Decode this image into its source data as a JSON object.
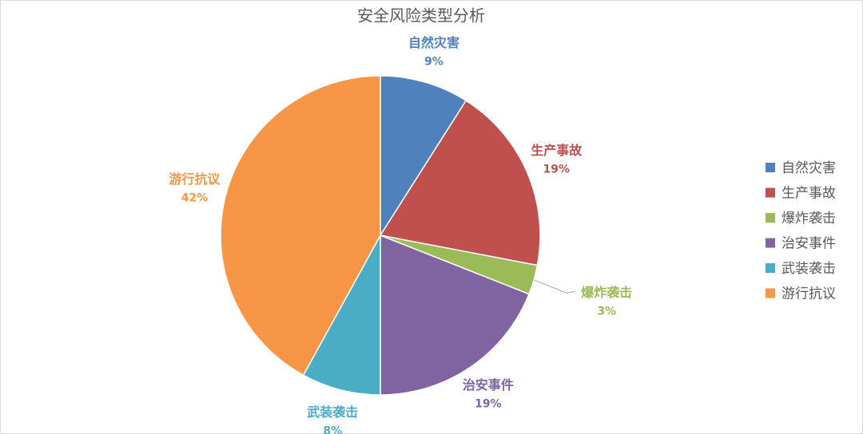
{
  "chart_data": {
    "type": "pie",
    "title": "安全风险类型分析",
    "categories": [
      "自然灾害",
      "生产事故",
      "爆炸袭击",
      "治安事件",
      "武装袭击",
      "游行抗议"
    ],
    "values": [
      9,
      19,
      3,
      19,
      8,
      42
    ],
    "value_labels": [
      "9%",
      "19%",
      "3%",
      "19%",
      "8%",
      "42%"
    ],
    "colors": [
      "#4f81bd",
      "#c0504d",
      "#9bbb59",
      "#8064a2",
      "#4bacc6",
      "#f79646"
    ],
    "legend": "right"
  }
}
